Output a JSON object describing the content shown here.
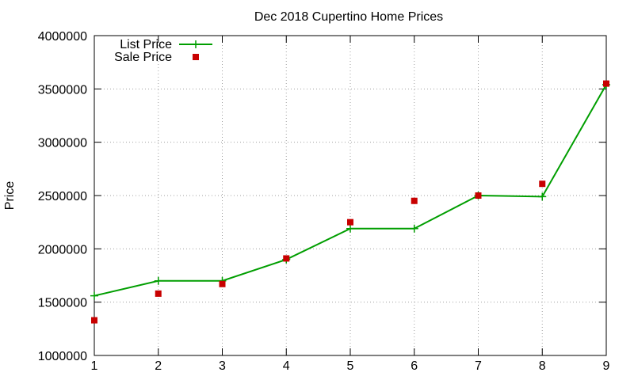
{
  "chart_data": {
    "type": "line",
    "title": "Dec 2018 Cupertino Home Prices",
    "xlabel": "",
    "ylabel": "Price",
    "xlim": [
      1,
      9
    ],
    "ylim": [
      1000000,
      4000000
    ],
    "x_ticks": [
      1,
      2,
      3,
      4,
      5,
      6,
      7,
      8,
      9
    ],
    "y_ticks": [
      1000000,
      1500000,
      2000000,
      2500000,
      3000000,
      3500000,
      4000000
    ],
    "grid": true,
    "legend_position": "top-left",
    "series": [
      {
        "name": "List Price",
        "style": "line-with-plus-markers",
        "color": "#009e00",
        "x": [
          1,
          2,
          3,
          4,
          5,
          6,
          7,
          8,
          9
        ],
        "values": [
          1560000,
          1700000,
          1700000,
          1900000,
          2190000,
          2190000,
          2500000,
          2490000,
          3540000
        ]
      },
      {
        "name": "Sale Price",
        "style": "square-points",
        "color": "#c80000",
        "x": [
          1,
          2,
          3,
          4,
          5,
          6,
          7,
          8,
          9
        ],
        "values": [
          1330000,
          1580000,
          1670000,
          1910000,
          2250000,
          2450000,
          2500000,
          2610000,
          3550000
        ]
      }
    ]
  }
}
